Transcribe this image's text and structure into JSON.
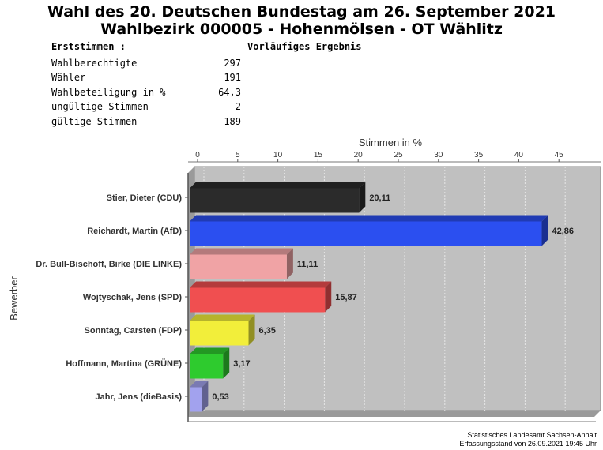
{
  "header": {
    "title_line1": "Wahl des 20. Deutschen Bundestag am 26. September 2021",
    "title_line2": "Wahlbezirk 000005 - Hohenmölsen - OT Wählitz"
  },
  "stats": {
    "section_label": "Erststimmen  :",
    "result_label": "Vorläufiges Ergebnis",
    "rows": [
      {
        "label": "Wahlberechtigte",
        "value": "297"
      },
      {
        "label": "Wähler",
        "value": "191"
      },
      {
        "label": "Wahlbeteiligung in %",
        "value": "64,3"
      },
      {
        "label": "ungültige Stimmen",
        "value": "2"
      },
      {
        "label": "gültige Stimmen",
        "value": "189"
      }
    ]
  },
  "chart_data": {
    "type": "bar",
    "orientation": "horizontal",
    "xlabel": "Stimmen in %",
    "ylabel": "Bewerber",
    "xlim": [
      0,
      50
    ],
    "xticks": [
      0,
      5,
      10,
      15,
      20,
      25,
      30,
      35,
      40,
      45
    ],
    "grid": true,
    "categories": [
      "Stier, Dieter (CDU)",
      "Reichardt, Martin (AfD)",
      "Dr. Bull-Bischoff, Birke (DIE LINKE)",
      "Wojtyschak, Jens (SPD)",
      "Sonntag, Carsten (FDP)",
      "Hoffmann, Martina (GRÜNE)",
      "Jahr, Jens (dieBasis)"
    ],
    "values": [
      20.11,
      42.86,
      11.11,
      15.87,
      6.35,
      3.17,
      0.53
    ],
    "value_labels": [
      "20,11",
      "42,86",
      "11,11",
      "15,87",
      "6,35",
      "3,17",
      "0,53"
    ],
    "colors": [
      "#2b2b2b",
      "#2b4ff0",
      "#f0a3a5",
      "#f04f50",
      "#f2ee3a",
      "#2ecb2e",
      "#a2a2ee"
    ]
  },
  "footer": {
    "line1": "Statistisches Landesamt Sachsen-Anhalt",
    "line2": "Erfassungsstand von 26.09.2021 19:45 Uhr"
  }
}
